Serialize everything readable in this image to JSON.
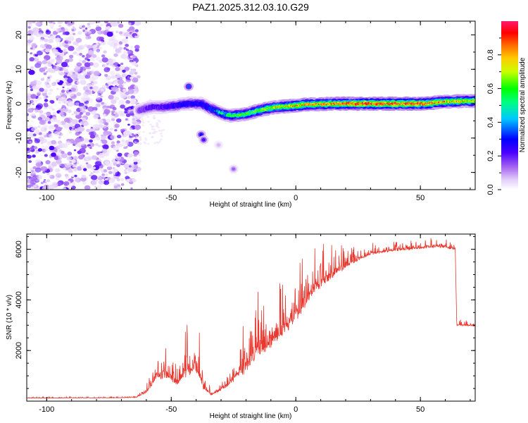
{
  "title": "PAZ1.2025.312.03.10.G29",
  "chart_data": [
    {
      "type": "heatmap",
      "name": "spectrogram",
      "xlabel": "Height of straight line (km)",
      "ylabel": "Frequency (Hz)",
      "xlim": [
        -108,
        72
      ],
      "ylim": [
        -25,
        24
      ],
      "x_ticks": [
        -100,
        -50,
        0,
        50
      ],
      "y_ticks": [
        -20,
        -10,
        0,
        10,
        20
      ],
      "x_tick_labels": [
        "-100",
        "-50",
        "0",
        "50"
      ],
      "y_tick_labels": [
        "-20",
        "-10",
        "0",
        "10",
        "20"
      ],
      "noise_region_x": [
        -108,
        -63
      ],
      "ridge": [
        {
          "x": -63,
          "y": -2.0,
          "amp": 0.25
        },
        {
          "x": -58,
          "y": -1.0,
          "amp": 0.3
        },
        {
          "x": -53,
          "y": -1.0,
          "amp": 0.32
        },
        {
          "x": -48,
          "y": -0.5,
          "amp": 0.38
        },
        {
          "x": -43,
          "y": 0.0,
          "amp": 0.42
        },
        {
          "x": -38,
          "y": 0.0,
          "amp": 0.4
        },
        {
          "x": -34,
          "y": -1.5,
          "amp": 0.45
        },
        {
          "x": -30,
          "y": -2.8,
          "amp": 0.55
        },
        {
          "x": -26,
          "y": -3.5,
          "amp": 0.62
        },
        {
          "x": -20,
          "y": -3.0,
          "amp": 0.65
        },
        {
          "x": -15,
          "y": -2.0,
          "amp": 0.7
        },
        {
          "x": -10,
          "y": -1.2,
          "amp": 0.75
        },
        {
          "x": -5,
          "y": -0.8,
          "amp": 0.78
        },
        {
          "x": 0,
          "y": -0.6,
          "amp": 0.82
        },
        {
          "x": 5,
          "y": -0.2,
          "amp": 0.85
        },
        {
          "x": 15,
          "y": 0.0,
          "amp": 0.88
        },
        {
          "x": 25,
          "y": 0.0,
          "amp": 0.95
        },
        {
          "x": 40,
          "y": 0.0,
          "amp": 0.96
        },
        {
          "x": 52,
          "y": 0.0,
          "amp": 0.94
        },
        {
          "x": 58,
          "y": 0.5,
          "amp": 0.85
        },
        {
          "x": 65,
          "y": 0.7,
          "amp": 0.8
        },
        {
          "x": 72,
          "y": 0.8,
          "amp": 0.78
        }
      ],
      "side_blobs": [
        {
          "x": -43,
          "y": 5.0,
          "amp": 0.35
        },
        {
          "x": -38,
          "y": -9.0,
          "amp": 0.3
        },
        {
          "x": -37,
          "y": -10.5,
          "amp": 0.25
        },
        {
          "x": -25,
          "y": -19.0,
          "amp": 0.15
        },
        {
          "x": -31,
          "y": -12.0,
          "amp": 0.08
        }
      ],
      "colorbar": {
        "label": "Normalized spectral amplitude",
        "range": [
          0,
          1
        ],
        "ticks": [
          0.0,
          0.2,
          0.4,
          0.6,
          0.8
        ],
        "tick_labels": [
          "0.0",
          "0.2",
          "0.4",
          "0.6",
          "0.8"
        ]
      }
    },
    {
      "type": "line",
      "name": "snr",
      "xlabel": "Height of straight line (km)",
      "ylabel": "SNR (10 * v/v)",
      "xlim": [
        -108,
        72
      ],
      "ylim": [
        0,
        6600
      ],
      "x_ticks": [
        -100,
        -50,
        0,
        50
      ],
      "y_ticks": [
        2000,
        4000,
        6000
      ],
      "x_tick_labels": [
        "-100",
        "-50",
        "0",
        "50"
      ],
      "y_tick_labels": [
        "2000",
        "4000",
        "6000"
      ],
      "color": "#e8382f",
      "envelope": [
        {
          "x": -108,
          "base": 120,
          "spread": 60
        },
        {
          "x": -70,
          "base": 130,
          "spread": 60
        },
        {
          "x": -64,
          "base": 150,
          "spread": 80
        },
        {
          "x": -60,
          "base": 350,
          "spread": 300
        },
        {
          "x": -56,
          "base": 900,
          "spread": 1300
        },
        {
          "x": -52,
          "base": 1000,
          "spread": 1400
        },
        {
          "x": -48,
          "base": 700,
          "spread": 900
        },
        {
          "x": -44,
          "base": 1100,
          "spread": 2200
        },
        {
          "x": -40,
          "base": 1300,
          "spread": 2500
        },
        {
          "x": -37,
          "base": 500,
          "spread": 900
        },
        {
          "x": -34,
          "base": 250,
          "spread": 200
        },
        {
          "x": -30,
          "base": 450,
          "spread": 500
        },
        {
          "x": -25,
          "base": 800,
          "spread": 900
        },
        {
          "x": -20,
          "base": 1300,
          "spread": 2500
        },
        {
          "x": -15,
          "base": 1900,
          "spread": 2800
        },
        {
          "x": -10,
          "base": 2300,
          "spread": 2600
        },
        {
          "x": -5,
          "base": 2700,
          "spread": 2100
        },
        {
          "x": 0,
          "base": 3300,
          "spread": 2300
        },
        {
          "x": 5,
          "base": 4000,
          "spread": 2000
        },
        {
          "x": 10,
          "base": 4600,
          "spread": 1700
        },
        {
          "x": 15,
          "base": 5000,
          "spread": 1400
        },
        {
          "x": 20,
          "base": 5300,
          "spread": 900
        },
        {
          "x": 25,
          "base": 5600,
          "spread": 650
        },
        {
          "x": 30,
          "base": 5800,
          "spread": 450
        },
        {
          "x": 40,
          "base": 5950,
          "spread": 350
        },
        {
          "x": 50,
          "base": 6050,
          "spread": 350
        },
        {
          "x": 55,
          "base": 6100,
          "spread": 400
        },
        {
          "x": 60,
          "base": 6050,
          "spread": 350
        },
        {
          "x": 64,
          "base": 6000,
          "spread": 300
        },
        {
          "x": 64.6,
          "base": 3000,
          "spread": 250
        },
        {
          "x": 72,
          "base": 2980,
          "spread": 200
        }
      ]
    }
  ]
}
